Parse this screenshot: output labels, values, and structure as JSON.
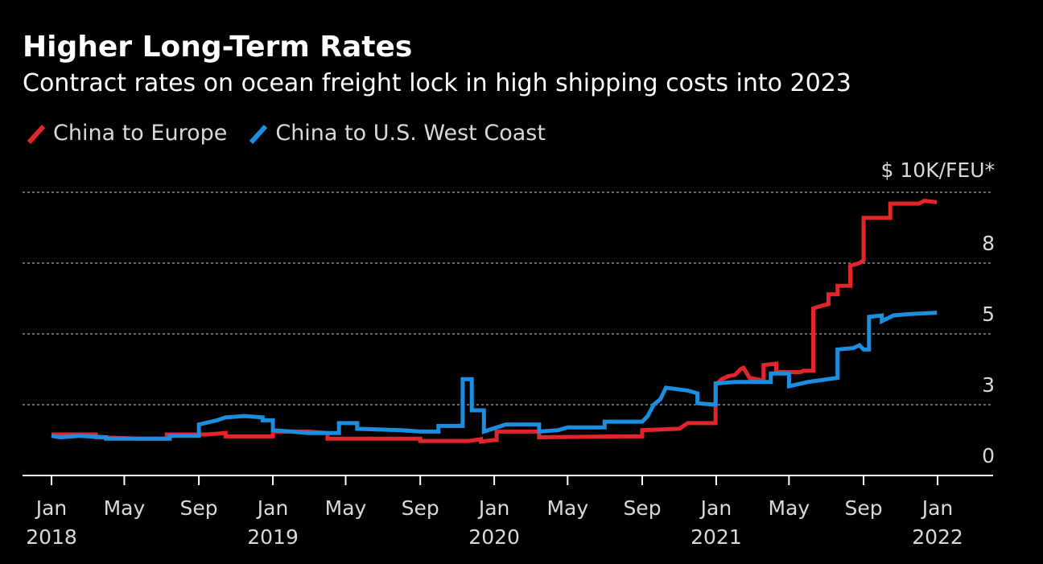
{
  "chart_data": {
    "type": "line",
    "title": "Higher Long-Term Rates",
    "subtitle": "Contract rates on ocean freight lock in high shipping costs into 2023",
    "unit_label": "$ 10K/FEU*",
    "legend_position": "top-left",
    "grid": "horizontal dashed",
    "xlim": [
      "2018-01",
      "2022-01"
    ],
    "ylim": [
      0,
      10
    ],
    "y_ticks": [
      {
        "value": 10,
        "label": ""
      },
      {
        "value": 7.5,
        "label": "8"
      },
      {
        "value": 5,
        "label": "5"
      },
      {
        "value": 2.5,
        "label": "3"
      },
      {
        "value": 0,
        "label": "0"
      }
    ],
    "x_ticks": [
      {
        "date": "2018-01",
        "month": "Jan",
        "year": "2018"
      },
      {
        "date": "2018-05",
        "month": "May",
        "year": ""
      },
      {
        "date": "2018-09",
        "month": "Sep",
        "year": ""
      },
      {
        "date": "2019-01",
        "month": "Jan",
        "year": "2019"
      },
      {
        "date": "2019-05",
        "month": "May",
        "year": ""
      },
      {
        "date": "2019-09",
        "month": "Sep",
        "year": ""
      },
      {
        "date": "2020-01",
        "month": "Jan",
        "year": "2020"
      },
      {
        "date": "2020-05",
        "month": "May",
        "year": ""
      },
      {
        "date": "2020-09",
        "month": "Sep",
        "year": ""
      },
      {
        "date": "2021-01",
        "month": "Jan",
        "year": "2021"
      },
      {
        "date": "2021-05",
        "month": "May",
        "year": ""
      },
      {
        "date": "2021-09",
        "month": "Sep",
        "year": ""
      },
      {
        "date": "2022-01",
        "month": "Jan",
        "year": "2022"
      }
    ],
    "series": [
      {
        "name": "China to Europe",
        "color": "#e0262b",
        "points": [
          [
            "2018-01-01",
            1.45
          ],
          [
            "2018-03-15",
            1.45
          ],
          [
            "2018-03-15",
            1.35
          ],
          [
            "2018-06-01",
            1.3
          ],
          [
            "2018-07-10",
            1.3
          ],
          [
            "2018-07-10",
            1.45
          ],
          [
            "2018-09-15",
            1.45
          ],
          [
            "2018-10-15",
            1.5
          ],
          [
            "2018-10-15",
            1.38
          ],
          [
            "2019-01-01",
            1.38
          ],
          [
            "2019-01-01",
            1.55
          ],
          [
            "2019-03-01",
            1.55
          ],
          [
            "2019-04-01",
            1.5
          ],
          [
            "2019-04-01",
            1.3
          ],
          [
            "2019-09-01",
            1.3
          ],
          [
            "2019-09-01",
            1.22
          ],
          [
            "2019-11-20",
            1.22
          ],
          [
            "2019-12-10",
            1.28
          ],
          [
            "2019-12-10",
            1.2
          ],
          [
            "2019-12-31",
            1.25
          ],
          [
            "2020-01-05",
            1.25
          ],
          [
            "2020-01-05",
            1.55
          ],
          [
            "2020-03-15",
            1.55
          ],
          [
            "2020-03-15",
            1.35
          ],
          [
            "2020-08-01",
            1.38
          ],
          [
            "2020-09-01",
            1.38
          ],
          [
            "2020-09-01",
            1.6
          ],
          [
            "2020-11-01",
            1.65
          ],
          [
            "2020-11-15",
            1.85
          ],
          [
            "2020-12-31",
            1.85
          ],
          [
            "2020-12-31",
            3.2
          ],
          [
            "2021-01-10",
            3.4
          ],
          [
            "2021-01-20",
            3.5
          ],
          [
            "2021-02-01",
            3.55
          ],
          [
            "2021-02-10",
            3.75
          ],
          [
            "2021-02-15",
            3.8
          ],
          [
            "2021-02-25",
            3.45
          ],
          [
            "2021-03-20",
            3.35
          ],
          [
            "2021-03-20",
            3.9
          ],
          [
            "2021-04-10",
            3.95
          ],
          [
            "2021-04-10",
            3.65
          ],
          [
            "2021-05-20",
            3.65
          ],
          [
            "2021-05-25",
            3.7
          ],
          [
            "2021-06-10",
            3.7
          ],
          [
            "2021-06-10",
            5.9
          ],
          [
            "2021-06-25",
            6.0
          ],
          [
            "2021-07-05",
            6.05
          ],
          [
            "2021-07-05",
            6.4
          ],
          [
            "2021-07-20",
            6.4
          ],
          [
            "2021-07-20",
            6.7
          ],
          [
            "2021-08-10",
            6.7
          ],
          [
            "2021-08-10",
            7.4
          ],
          [
            "2021-08-25",
            7.5
          ],
          [
            "2021-09-01",
            7.6
          ],
          [
            "2021-09-01",
            9.1
          ],
          [
            "2021-10-15",
            9.1
          ],
          [
            "2021-10-15",
            9.6
          ],
          [
            "2021-12-01",
            9.6
          ],
          [
            "2021-12-10",
            9.7
          ],
          [
            "2021-12-31",
            9.65
          ]
        ]
      },
      {
        "name": "China to U.S. West Coast",
        "color": "#1b8ee0",
        "points": [
          [
            "2018-01-01",
            1.4
          ],
          [
            "2018-01-15",
            1.35
          ],
          [
            "2018-02-15",
            1.4
          ],
          [
            "2018-04-01",
            1.35
          ],
          [
            "2018-04-01",
            1.3
          ],
          [
            "2018-06-01",
            1.3
          ],
          [
            "2018-07-15",
            1.3
          ],
          [
            "2018-07-15",
            1.4
          ],
          [
            "2018-09-01",
            1.4
          ],
          [
            "2018-09-01",
            1.8
          ],
          [
            "2018-10-01",
            1.95
          ],
          [
            "2018-10-15",
            2.05
          ],
          [
            "2018-11-15",
            2.1
          ],
          [
            "2018-12-15",
            2.05
          ],
          [
            "2018-12-15",
            1.95
          ],
          [
            "2019-01-01",
            1.95
          ],
          [
            "2019-01-01",
            1.6
          ],
          [
            "2019-02-01",
            1.55
          ],
          [
            "2019-03-01",
            1.5
          ],
          [
            "2019-04-20",
            1.5
          ],
          [
            "2019-04-20",
            1.85
          ],
          [
            "2019-05-20",
            1.85
          ],
          [
            "2019-05-20",
            1.65
          ],
          [
            "2019-08-01",
            1.6
          ],
          [
            "2019-09-01",
            1.55
          ],
          [
            "2019-10-01",
            1.55
          ],
          [
            "2019-10-01",
            1.75
          ],
          [
            "2019-11-10",
            1.75
          ],
          [
            "2019-11-10",
            3.4
          ],
          [
            "2019-11-25",
            3.4
          ],
          [
            "2019-11-25",
            2.3
          ],
          [
            "2019-12-15",
            2.3
          ],
          [
            "2019-12-15",
            1.55
          ],
          [
            "2020-01-20",
            1.8
          ],
          [
            "2020-03-15",
            1.8
          ],
          [
            "2020-03-15",
            1.55
          ],
          [
            "2020-04-15",
            1.6
          ],
          [
            "2020-05-01",
            1.7
          ],
          [
            "2020-07-01",
            1.7
          ],
          [
            "2020-07-01",
            1.9
          ],
          [
            "2020-08-15",
            1.9
          ],
          [
            "2020-09-01",
            1.9
          ],
          [
            "2020-09-10",
            2.1
          ],
          [
            "2020-09-20",
            2.5
          ],
          [
            "2020-10-01",
            2.7
          ],
          [
            "2020-10-10",
            3.1
          ],
          [
            "2020-11-15",
            3.0
          ],
          [
            "2020-12-01",
            2.9
          ],
          [
            "2020-12-01",
            2.55
          ],
          [
            "2020-12-31",
            2.5
          ],
          [
            "2020-12-31",
            3.25
          ],
          [
            "2021-02-01",
            3.3
          ],
          [
            "2021-04-01",
            3.3
          ],
          [
            "2021-04-01",
            3.6
          ],
          [
            "2021-05-01",
            3.6
          ],
          [
            "2021-05-01",
            3.15
          ],
          [
            "2021-06-01",
            3.3
          ],
          [
            "2021-07-20",
            3.45
          ],
          [
            "2021-07-20",
            4.45
          ],
          [
            "2021-08-15",
            4.5
          ],
          [
            "2021-08-25",
            4.6
          ],
          [
            "2021-09-01",
            4.45
          ],
          [
            "2021-09-10",
            4.45
          ],
          [
            "2021-09-10",
            5.6
          ],
          [
            "2021-10-01",
            5.65
          ],
          [
            "2021-10-01",
            5.45
          ],
          [
            "2021-10-20",
            5.65
          ],
          [
            "2021-11-15",
            5.7
          ],
          [
            "2021-12-31",
            5.75
          ]
        ]
      }
    ]
  }
}
